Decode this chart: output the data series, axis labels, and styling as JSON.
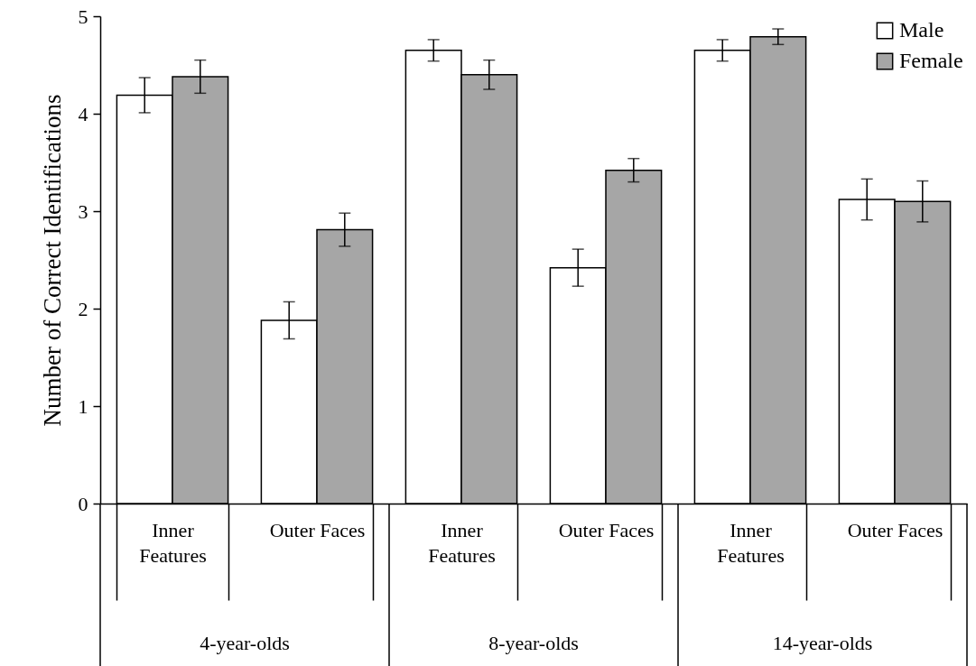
{
  "chart_data": {
    "type": "bar",
    "ylabel": "Number of Correct Identifications",
    "categories": [
      "Inner Features",
      "Outer Faces",
      "Inner Features",
      "Outer Faces",
      "Inner Features",
      "Outer Faces"
    ],
    "annotations": [
      "4-year-olds",
      "8-year-olds",
      "14-year-olds"
    ],
    "series": [
      {
        "name": "Male",
        "color": "#ffffff",
        "values": [
          4.19,
          1.88,
          4.65,
          2.42,
          4.65,
          3.12
        ],
        "errors": [
          0.18,
          0.19,
          0.11,
          0.19,
          0.11,
          0.21
        ]
      },
      {
        "name": "Female",
        "color": "#a6a6a6",
        "values": [
          4.38,
          2.81,
          4.4,
          3.42,
          4.79,
          3.1
        ],
        "errors": [
          0.17,
          0.17,
          0.15,
          0.12,
          0.08,
          0.21
        ]
      }
    ],
    "ylim": [
      0,
      5
    ],
    "yticks": [
      0,
      1,
      2,
      3,
      4,
      5
    ],
    "legend": "top right"
  }
}
